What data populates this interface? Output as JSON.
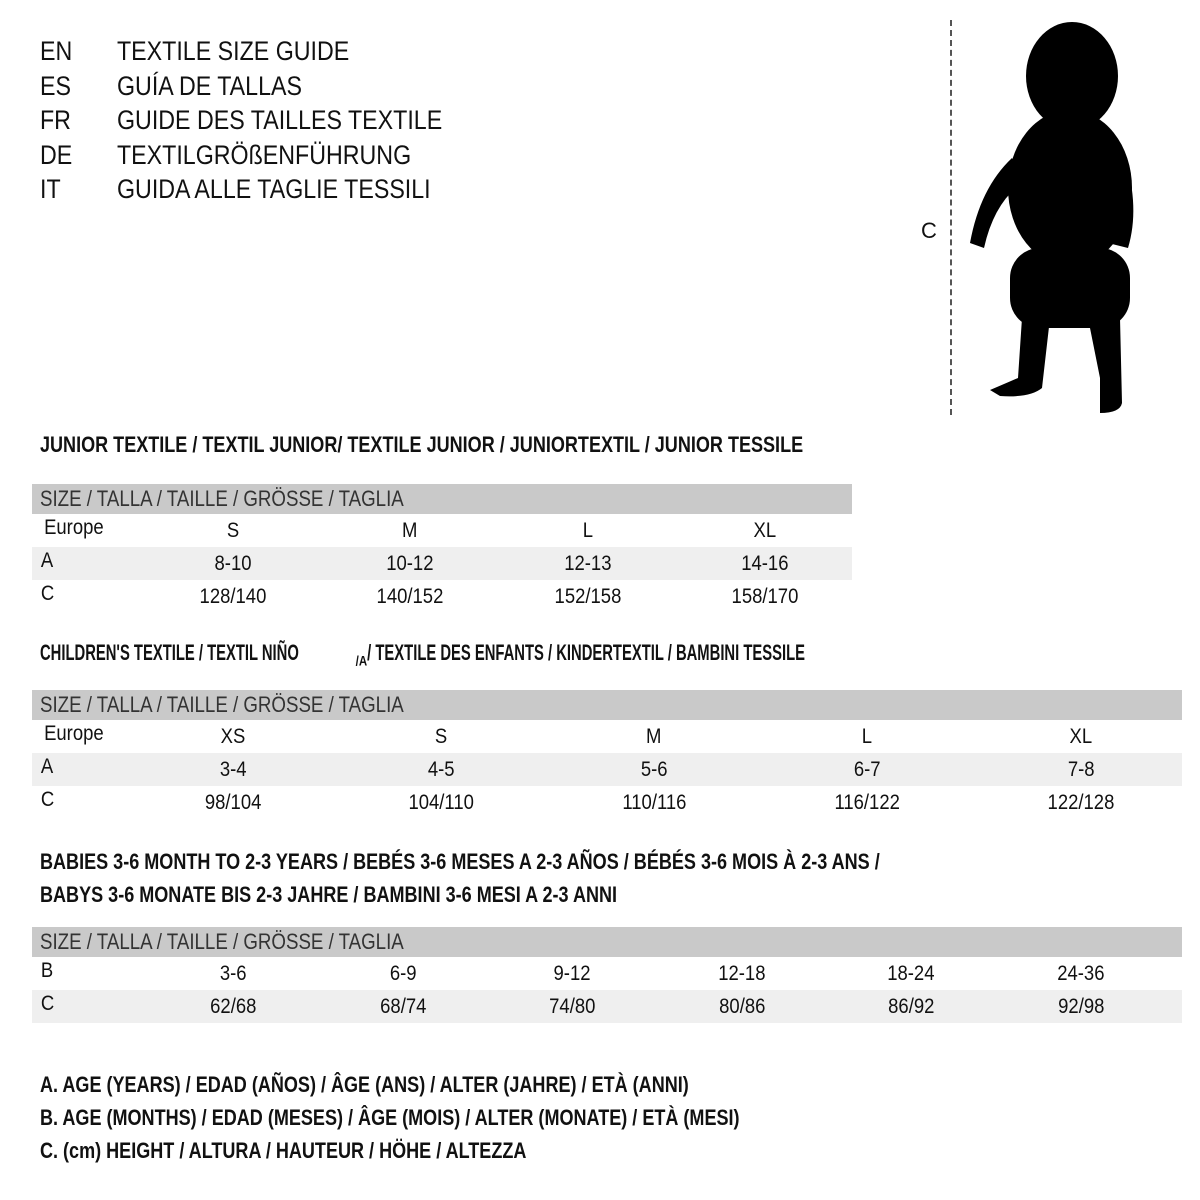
{
  "languages": [
    {
      "code": "EN",
      "text": "TEXTILE SIZE GUIDE"
    },
    {
      "code": "ES",
      "text": "GUÍA DE TALLAS"
    },
    {
      "code": "FR",
      "text": "GUIDE DES TAILLES TEXTILE"
    },
    {
      "code": "DE",
      "text": "TEXTILGRÖßENFÜHRUNG"
    },
    {
      "code": "IT",
      "text": "GUIDA ALLE TAGLIE TESSILI"
    }
  ],
  "figure": {
    "measure_label": "C",
    "icon": "child-silhouette-icon"
  },
  "junior": {
    "title": "JUNIOR TEXTILE / TEXTIL JUNIOR/ TEXTILE JUNIOR / JUNIORTEXTIL / JUNIOR TESSILE",
    "header": "SIZE / TALLA / TAILLE / GRÖSSE / TAGLIA",
    "rows": [
      {
        "label": "Europe",
        "values": [
          "S",
          "M",
          "L",
          "XL"
        ]
      },
      {
        "label": "A",
        "values": [
          "8-10",
          "10-12",
          "12-13",
          "14-16"
        ]
      },
      {
        "label": "C",
        "values": [
          "128/140",
          "140/152",
          "152/158",
          "158/170"
        ]
      }
    ]
  },
  "children": {
    "title_pre": "CHILDREN'S TEXTILE / TEXTIL NIÑO",
    "title_sub": "/A",
    "title_post": " / TEXTILE DES ENFANTS / KINDERTEXTIL / BAMBINI TESSILE",
    "header": "SIZE / TALLA / TAILLE / GRÖSSE / TAGLIA",
    "rows": [
      {
        "label": "Europe",
        "values": [
          "XS",
          "S",
          "M",
          "L",
          "XL"
        ]
      },
      {
        "label": "A",
        "values": [
          "3-4",
          "4-5",
          "5-6",
          "6-7",
          "7-8"
        ]
      },
      {
        "label": "C",
        "values": [
          "98/104",
          "104/110",
          "110/116",
          "116/122",
          "122/128"
        ]
      }
    ]
  },
  "babies": {
    "title_line1": "BABIES 3-6 MONTH TO 2-3 YEARS / BEBÉS 3-6 MESES A 2-3 AÑOS / BÉBÉS 3-6 MOIS À 2-3 ANS /",
    "title_line2": "BABYS 3-6 MONATE BIS 2-3 JAHRE / BAMBINI 3-6 MESI A 2-3 ANNI",
    "header": "SIZE / TALLA / TAILLE / GRÖSSE / TAGLIA",
    "rows": [
      {
        "label": "B",
        "values": [
          "3-6",
          "6-9",
          "9-12",
          "12-18",
          "18-24",
          "24-36"
        ]
      },
      {
        "label": "C",
        "values": [
          "62/68",
          "68/74",
          "74/80",
          "80/86",
          "86/92",
          "92/98"
        ]
      }
    ]
  },
  "legend": [
    "A. AGE (YEARS) / EDAD (AÑOS) / ÂGE (ANS) / ALTER (JAHRE) / ETÀ (ANNI)",
    "B. AGE (MONTHS) / EDAD (MESES) / ÂGE (MOIS) / ALTER (MONATE) / ETÀ (MESI)",
    "C. (cm) HEIGHT / ALTURA / HAUTEUR / HÖHE / ALTEZZA"
  ],
  "colors": {
    "header_bg": "#c9c9c9",
    "alt_row_bg": "#efefef",
    "text": "#111111"
  }
}
